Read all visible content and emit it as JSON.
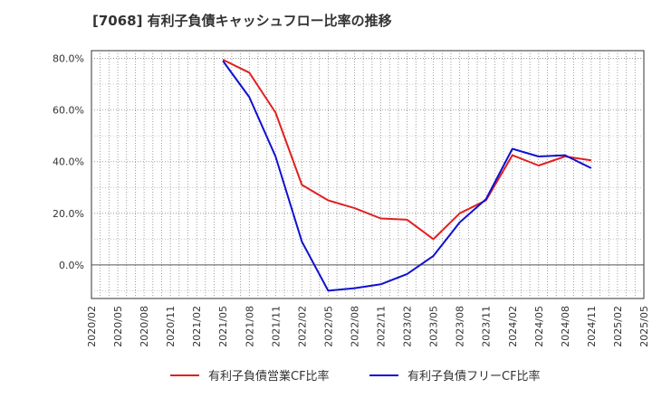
{
  "chart_data": {
    "type": "line",
    "title": "[7068]  有利子負債キャッシュフロー比率の推移",
    "xlabel": "",
    "ylabel": "",
    "x_ticks": [
      "2020/02",
      "2020/05",
      "2020/08",
      "2020/11",
      "2021/02",
      "2021/05",
      "2021/08",
      "2021/11",
      "2022/02",
      "2022/05",
      "2022/08",
      "2022/11",
      "2023/02",
      "2023/05",
      "2023/08",
      "2023/11",
      "2024/02",
      "2024/05",
      "2024/08",
      "2024/11",
      "2025/02",
      "2025/05"
    ],
    "y_ticks": [
      0,
      20,
      40,
      60,
      80
    ],
    "y_tick_labels": [
      "0.0%",
      "20.0%",
      "40.0%",
      "60.0%",
      "80.0%"
    ],
    "ylim": [
      -13,
      83
    ],
    "grid": true,
    "legend_position": "bottom",
    "series": [
      {
        "name": "有利子負債営業CF比率",
        "color": "#e02020",
        "points": [
          {
            "x": "2021/05",
            "y": 79.5
          },
          {
            "x": "2021/08",
            "y": 74.5
          },
          {
            "x": "2021/11",
            "y": 59.0
          },
          {
            "x": "2022/02",
            "y": 31.0
          },
          {
            "x": "2022/05",
            "y": 25.0
          },
          {
            "x": "2022/08",
            "y": 22.0
          },
          {
            "x": "2022/11",
            "y": 18.0
          },
          {
            "x": "2023/02",
            "y": 17.5
          },
          {
            "x": "2023/05",
            "y": 10.0
          },
          {
            "x": "2023/08",
            "y": 20.0
          },
          {
            "x": "2023/11",
            "y": 25.0
          },
          {
            "x": "2024/02",
            "y": 42.5
          },
          {
            "x": "2024/05",
            "y": 38.5
          },
          {
            "x": "2024/08",
            "y": 42.0
          },
          {
            "x": "2024/11",
            "y": 40.5
          }
        ]
      },
      {
        "name": "有利子負債フリーCF比率",
        "color": "#1010d0",
        "points": [
          {
            "x": "2021/05",
            "y": 79.0
          },
          {
            "x": "2021/08",
            "y": 65.0
          },
          {
            "x": "2021/11",
            "y": 42.0
          },
          {
            "x": "2022/02",
            "y": 9.0
          },
          {
            "x": "2022/05",
            "y": -10.0
          },
          {
            "x": "2022/08",
            "y": -9.0
          },
          {
            "x": "2022/11",
            "y": -7.5
          },
          {
            "x": "2023/02",
            "y": -3.5
          },
          {
            "x": "2023/05",
            "y": 3.5
          },
          {
            "x": "2023/08",
            "y": 16.5
          },
          {
            "x": "2023/11",
            "y": 25.5
          },
          {
            "x": "2024/02",
            "y": 45.0
          },
          {
            "x": "2024/05",
            "y": 42.0
          },
          {
            "x": "2024/08",
            "y": 42.5
          },
          {
            "x": "2024/11",
            "y": 37.5
          }
        ]
      }
    ]
  }
}
